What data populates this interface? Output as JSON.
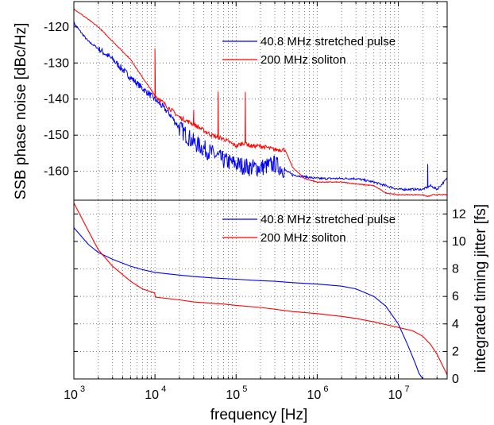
{
  "chart_data": [
    {
      "type": "line",
      "panel": "top",
      "ylabel": "SSB phase noise [dBc/Hz]",
      "x_scale": "log",
      "xlim": [
        1000,
        40000000
      ],
      "ylim": [
        -168,
        -113
      ],
      "yticks": [
        -160,
        -150,
        -140,
        -130,
        -120
      ],
      "grid": true,
      "legend_position": "top-right",
      "series": [
        {
          "name": "40.8 MHz stretched pulse",
          "color": "#0000ff",
          "x": [
            1000,
            1500,
            2000,
            3000,
            5000,
            7000,
            10000,
            15000,
            20000,
            30000,
            50000,
            70000,
            100000,
            150000,
            200000,
            300000,
            500000,
            700000,
            1000000,
            2000000,
            3000000,
            5000000,
            7000000,
            10000000,
            20000000,
            25000000,
            30000000,
            40000000
          ],
          "y": [
            -119,
            -124,
            -126,
            -129,
            -134,
            -137,
            -140,
            -144,
            -148,
            -152,
            -155,
            -157,
            -158,
            -159,
            -159,
            -158,
            -161,
            -161.5,
            -162,
            -162,
            -162,
            -163,
            -164,
            -165,
            -165,
            -164,
            -165,
            -162
          ]
        },
        {
          "name": "200 MHz soliton",
          "color": "#ff0000",
          "x": [
            1000,
            2000,
            3000,
            5000,
            7000,
            10000,
            20000,
            30000,
            50000,
            70000,
            100000,
            130000,
            150000,
            200000,
            300000,
            400000,
            500000,
            700000,
            1000000,
            2000000,
            3000000,
            5000000,
            7000000,
            10000000,
            20000000,
            23000000,
            27000000,
            40000000
          ],
          "y": [
            -115,
            -120,
            -124,
            -129,
            -134,
            -139,
            -145,
            -147,
            -150,
            -151,
            -153,
            -152,
            -153,
            -153,
            -154,
            -154,
            -159,
            -162,
            -163,
            -163,
            -163.5,
            -164,
            -166,
            -166.5,
            -166.5,
            -167,
            -166.5,
            -166.5
          ]
        }
      ],
      "spurs": [
        {
          "series": "200 MHz soliton",
          "x": 10000,
          "peak": -126
        },
        {
          "series": "200 MHz soliton",
          "x": 30000,
          "peak": -143
        },
        {
          "series": "200 MHz soliton",
          "x": 60000,
          "peak": -138
        },
        {
          "series": "200 MHz soliton",
          "x": 130000,
          "peak": -138
        },
        {
          "series": "40.8 MHz stretched pulse",
          "x": 23000000,
          "peak": -158
        }
      ]
    },
    {
      "type": "line",
      "panel": "bottom",
      "xlabel": "frequency [Hz]",
      "ylabel": "integrated timing jitter [fs]",
      "x_scale": "log",
      "xlim": [
        1000,
        40000000
      ],
      "ylim": [
        0,
        13
      ],
      "yticks": [
        0,
        2,
        4,
        6,
        8,
        10,
        12
      ],
      "xticks": [
        1000,
        10000,
        100000,
        1000000,
        10000000
      ],
      "xtick_labels": [
        {
          "base": "10",
          "exp": "3"
        },
        {
          "base": "10",
          "exp": "4"
        },
        {
          "base": "10",
          "exp": "5"
        },
        {
          "base": "10",
          "exp": "6"
        },
        {
          "base": "10",
          "exp": "7"
        }
      ],
      "grid": true,
      "legend_position": "top-right",
      "series": [
        {
          "name": "40.8 MHz stretched pulse",
          "color": "#0000ff",
          "x": [
            1000,
            1500,
            2000,
            3000,
            5000,
            7000,
            10000,
            20000,
            30000,
            50000,
            100000,
            200000,
            300000,
            500000,
            1000000,
            2000000,
            3000000,
            5000000,
            7000000,
            10000000,
            13000000,
            16000000,
            18000000,
            20000000
          ],
          "y": [
            11.0,
            9.8,
            9.2,
            8.7,
            8.2,
            7.95,
            7.75,
            7.55,
            7.45,
            7.35,
            7.25,
            7.15,
            7.1,
            7.0,
            6.9,
            6.75,
            6.55,
            6.0,
            5.3,
            4.0,
            2.5,
            1.2,
            0.4,
            0
          ]
        },
        {
          "name": "200 MHz soliton",
          "color": "#ff0000",
          "x": [
            1000,
            1500,
            2000,
            3000,
            5000,
            7000,
            9900,
            10100,
            20000,
            30000,
            50000,
            70000,
            100000,
            200000,
            500000,
            1000000,
            2000000,
            3000000,
            5000000,
            7000000,
            10000000,
            15000000,
            20000000,
            25000000,
            30000000,
            35000000,
            40000000
          ],
          "y": [
            12.8,
            10.8,
            9.4,
            8.2,
            7.1,
            6.55,
            6.25,
            5.95,
            5.75,
            5.6,
            5.5,
            5.45,
            5.35,
            5.2,
            4.9,
            4.75,
            4.55,
            4.4,
            4.15,
            3.95,
            3.75,
            3.5,
            3.1,
            2.5,
            1.8,
            1.0,
            0.3
          ]
        }
      ]
    }
  ]
}
